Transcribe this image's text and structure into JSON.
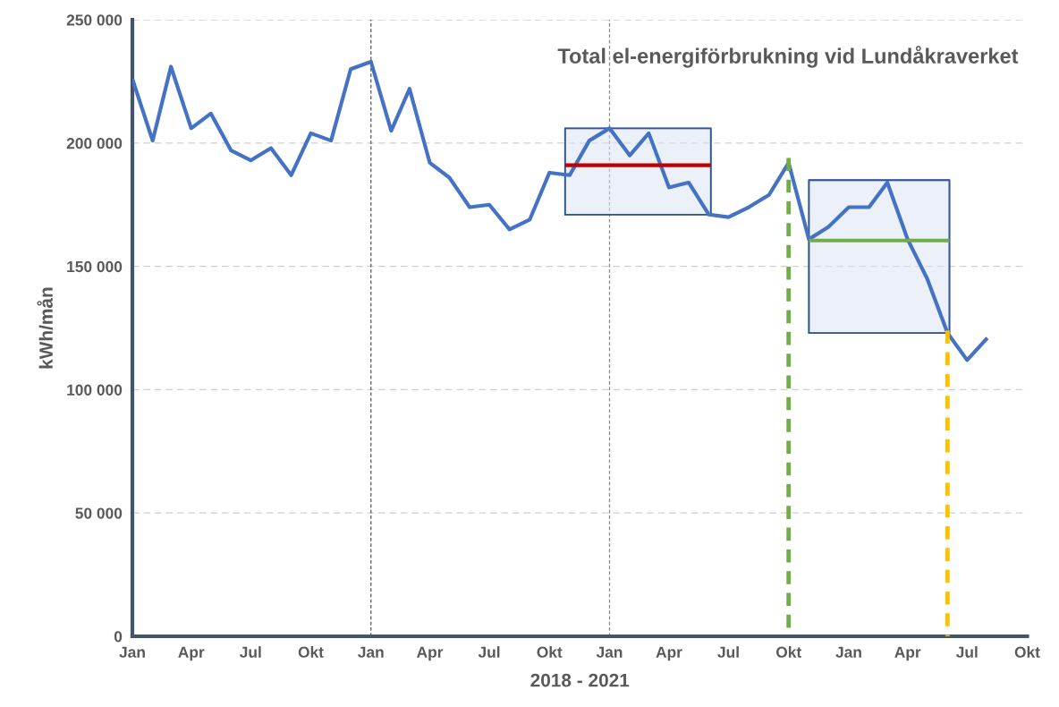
{
  "chart_data": {
    "type": "line",
    "title": "Total el-energiförbrukning vid Lundåkraverket",
    "xlabel": "2018 - 2021",
    "ylabel": "kWh/mån",
    "xlim": [
      "2018-01",
      "2021-10"
    ],
    "xticks": [
      {
        "value": "2018-01",
        "label": "Jan"
      },
      {
        "value": "2018-04",
        "label": "Apr"
      },
      {
        "value": "2018-07",
        "label": "Jul"
      },
      {
        "value": "2018-10",
        "label": "Okt"
      },
      {
        "value": "2019-01",
        "label": "Jan"
      },
      {
        "value": "2019-04",
        "label": "Apr"
      },
      {
        "value": "2019-07",
        "label": "Jul"
      },
      {
        "value": "2019-10",
        "label": "Okt"
      },
      {
        "value": "2020-01",
        "label": "Jan"
      },
      {
        "value": "2020-04",
        "label": "Apr"
      },
      {
        "value": "2020-07",
        "label": "Jul"
      },
      {
        "value": "2020-10",
        "label": "Okt"
      },
      {
        "value": "2021-01",
        "label": "Jan"
      },
      {
        "value": "2021-04",
        "label": "Apr"
      },
      {
        "value": "2021-07",
        "label": "Jul"
      },
      {
        "value": "2021-10",
        "label": "Okt"
      }
    ],
    "ylim": [
      0,
      250000
    ],
    "yticks": [
      0,
      {
        "value": 50000,
        "label": "50 000"
      },
      {
        "value": 100000,
        "label": "100 000"
      },
      {
        "value": 150000,
        "label": "150 000"
      },
      {
        "value": 200000,
        "label": "200 000"
      },
      {
        "value": 250000,
        "label": "250 000"
      }
    ],
    "grid": "y",
    "legend": false,
    "marker": "none",
    "line_style": "solid",
    "ref_lines": [
      {
        "axis": "x",
        "value": "2019-01",
        "color": "#555555",
        "line_style": "dashed"
      },
      {
        "axis": "x",
        "value": "2020-01",
        "color": "#888888",
        "line_style": "dashed"
      }
    ],
    "series": [
      {
        "color": "#4472c4",
        "x": [
          "2018-01",
          "2018-02",
          "2018-03",
          "2018-04",
          "2018-05",
          "2018-06",
          "2018-07",
          "2018-08",
          "2018-09",
          "2018-10",
          "2018-11",
          "2018-12",
          "2019-01",
          "2019-02",
          "2019-03",
          "2019-04",
          "2019-05",
          "2019-06",
          "2019-07",
          "2019-08",
          "2019-09",
          "2019-10",
          "2019-11",
          "2019-12",
          "2020-01",
          "2020-02",
          "2020-03",
          "2020-04",
          "2020-05",
          "2020-06",
          "2020-07",
          "2020-08",
          "2020-09",
          "2020-10",
          "2020-11",
          "2020-12",
          "2021-01",
          "2021-02",
          "2021-03",
          "2021-04",
          "2021-05",
          "2021-06",
          "2021-07",
          "2021-08"
        ],
        "values": [
          226000,
          201000,
          231000,
          206000,
          212000,
          197000,
          193000,
          198000,
          187000,
          204000,
          201000,
          230000,
          233000,
          205000,
          222000,
          192000,
          186000,
          174000,
          175000,
          165000,
          169000,
          188000,
          187000,
          201000,
          206000,
          195000,
          204000,
          182000,
          184000,
          171000,
          170000,
          174000,
          179000,
          192000,
          161000,
          166000,
          174000,
          174000,
          184000,
          161000,
          145000,
          123000,
          112000,
          121000
        ]
      },
      {
        "color": "#c00000",
        "x": [
          "2019-10-25",
          "2020-06-04"
        ],
        "values": [
          191000,
          191000
        ],
        "lower": [
          171000,
          171000
        ],
        "upper": [
          206000,
          206000
        ]
      },
      {
        "color": "#70ad47",
        "x": [
          "2020-11-01",
          "2021-06-04"
        ],
        "values": [
          160500,
          160500
        ],
        "lower": [
          123000,
          123000
        ],
        "upper": [
          185000,
          185000
        ]
      },
      {
        "color": "#70ad47",
        "line_style": "dashed",
        "x": [
          "2020-10",
          "2020-10"
        ],
        "values": [
          194000,
          0
        ]
      },
      {
        "color": "#ffc000",
        "line_style": "dashed",
        "x": [
          "2021-06",
          "2021-06"
        ],
        "values": [
          124000,
          0
        ]
      }
    ]
  }
}
